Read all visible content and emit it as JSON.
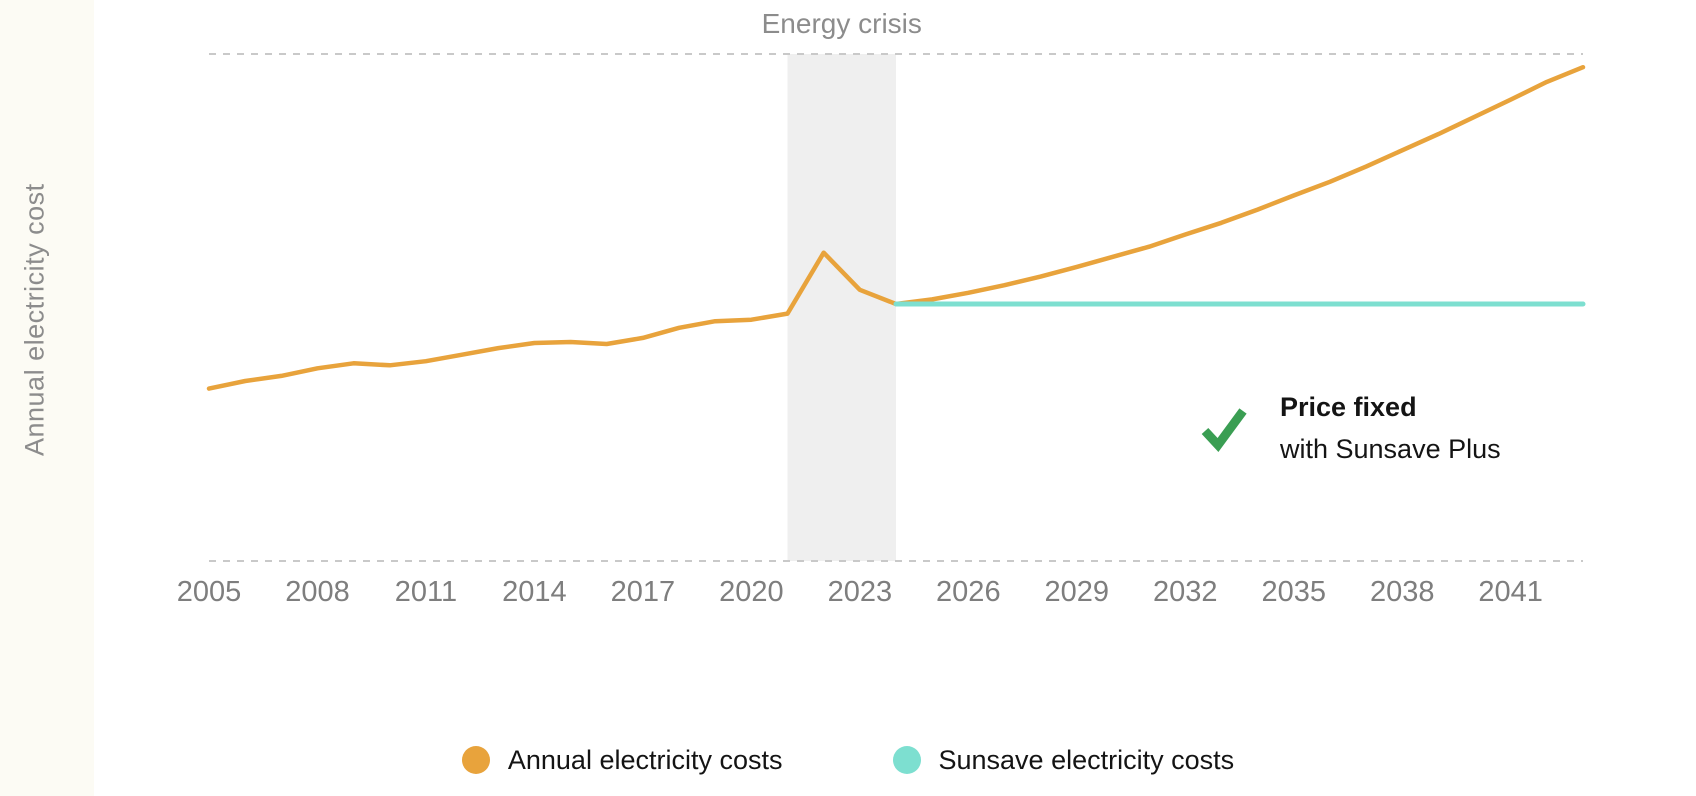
{
  "page": {
    "background_color": "#ffffff",
    "left_strip_color": "#fcfbf4"
  },
  "chart_data": {
    "type": "line",
    "title": "",
    "xlabel": "",
    "ylabel": "Annual electricity cost",
    "x_range": [
      2005,
      2043
    ],
    "y_range": [
      0,
      100
    ],
    "y_axis_ticks": "none (relative cost scale, top and bottom bounds shown as dashed lines)",
    "x_ticks": [
      2005,
      2008,
      2011,
      2014,
      2017,
      2020,
      2023,
      2026,
      2029,
      2032,
      2035,
      2038,
      2041
    ],
    "grid": "dashed horizontal lines at top and bottom of plot only",
    "gridline_color": "#c9c9c9",
    "legend_position": "bottom-center",
    "series": [
      {
        "name": "Annual electricity costs",
        "color": "#E8A33C",
        "x": [
          2005,
          2006,
          2007,
          2008,
          2009,
          2010,
          2011,
          2012,
          2013,
          2014,
          2015,
          2016,
          2017,
          2018,
          2019,
          2020,
          2021,
          2022,
          2023,
          2024,
          2025,
          2026,
          2027,
          2028,
          2029,
          2030,
          2031,
          2032,
          2033,
          2034,
          2035,
          2036,
          2037,
          2038,
          2039,
          2040,
          2041,
          2042,
          2043
        ],
        "values": [
          34,
          35.5,
          36.5,
          38,
          39,
          38.6,
          39.4,
          40.7,
          42,
          43,
          43.2,
          42.8,
          44,
          46,
          47.3,
          47.6,
          48.8,
          60.8,
          53.5,
          50.7,
          51.6,
          52.9,
          54.4,
          56.1,
          58,
          60,
          62,
          64.4,
          66.7,
          69.3,
          72.1,
          74.8,
          77.8,
          81,
          84.2,
          87.6,
          91,
          94.5,
          97.4
        ]
      },
      {
        "name": "Sunsave electricity costs",
        "color": "#7DDFD0",
        "x": [
          2024,
          2025,
          2026,
          2027,
          2028,
          2029,
          2030,
          2031,
          2032,
          2033,
          2034,
          2035,
          2036,
          2037,
          2038,
          2039,
          2040,
          2041,
          2042,
          2043
        ],
        "values": [
          50.7,
          50.7,
          50.7,
          50.7,
          50.7,
          50.7,
          50.7,
          50.7,
          50.7,
          50.7,
          50.7,
          50.7,
          50.7,
          50.7,
          50.7,
          50.7,
          50.7,
          50.7,
          50.7,
          50.7
        ]
      }
    ],
    "highlight_band": {
      "label": "Energy crisis",
      "x_start": 2021,
      "x_end": 2024,
      "color": "#efefef"
    },
    "annotations": {
      "energy_crisis": "Energy crisis",
      "price_fixed_title": "Price fixed",
      "price_fixed_subtitle": "with Sunsave Plus",
      "checkmark_color": "#3A9E53"
    },
    "legend": [
      {
        "label": "Annual electricity costs",
        "color": "#E8A33C"
      },
      {
        "label": "Sunsave electricity costs",
        "color": "#7DDFD0"
      }
    ]
  }
}
